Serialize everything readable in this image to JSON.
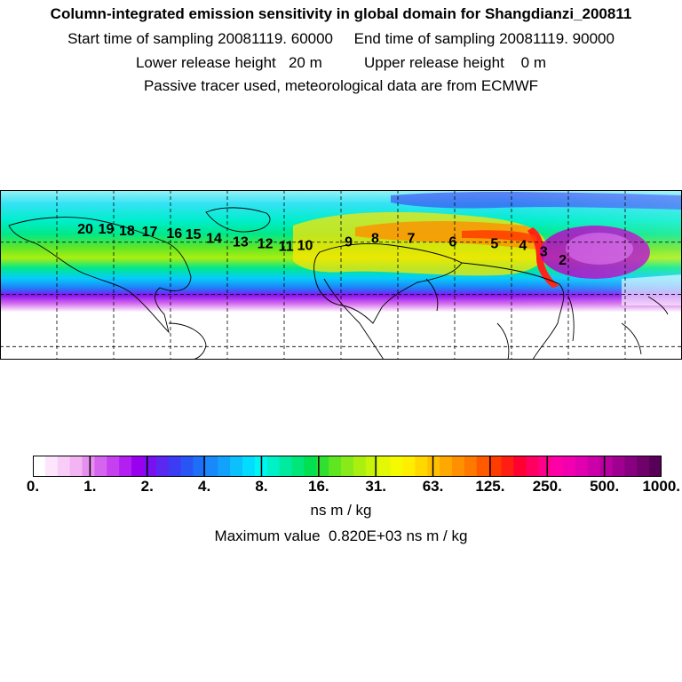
{
  "header": {
    "title": "Column-integrated emission sensitivity in global domain for Shangdianzi_200811",
    "line2": "Start time of sampling 20081119. 60000     End time of sampling 20081119. 90000",
    "line3": "Lower release height   20 m          Upper release height    0 m",
    "line4": "Passive tracer used, meteorological data are from ECMWF"
  },
  "map": {
    "grid": {
      "lon_lines": 12,
      "lat_lines": 3
    },
    "trajectory_labels": [
      {
        "label": "2",
        "lon": 117.0,
        "lat": 47.0
      },
      {
        "label": "3",
        "lon": 107.0,
        "lat": 52.0
      },
      {
        "label": "4",
        "lon": 96.0,
        "lat": 55.5
      },
      {
        "label": "5",
        "lon": 81.0,
        "lat": 56.5
      },
      {
        "label": "6",
        "lon": 59.0,
        "lat": 57.5
      },
      {
        "label": "7",
        "lon": 37.0,
        "lat": 59.5
      },
      {
        "label": "8",
        "lon": 18.0,
        "lat": 59.5
      },
      {
        "label": "9",
        "lon": 4.0,
        "lat": 57.5
      },
      {
        "label": "10",
        "lon": -19.0,
        "lat": 55.5
      },
      {
        "label": "11",
        "lon": -29.0,
        "lat": 55.0
      },
      {
        "label": "12",
        "lon": -40.0,
        "lat": 56.5
      },
      {
        "label": "13",
        "lon": -53.0,
        "lat": 57.5
      },
      {
        "label": "14",
        "lon": -67.0,
        "lat": 59.5
      },
      {
        "label": "15",
        "lon": -78.0,
        "lat": 62.0
      },
      {
        "label": "16",
        "lon": -88.0,
        "lat": 62.5
      },
      {
        "label": "17",
        "lon": -101.0,
        "lat": 63.5
      },
      {
        "label": "18",
        "lon": -113.0,
        "lat": 64.0
      },
      {
        "label": "19",
        "lon": -124.0,
        "lat": 65.0
      },
      {
        "label": "20",
        "lon": -135.0,
        "lat": 65.0
      }
    ]
  },
  "colorbar": {
    "ticks": [
      "0.",
      "1.",
      "2.",
      "4.",
      "8.",
      "16.",
      "31.",
      "63.",
      "125.",
      "250.",
      "500.",
      "1000."
    ],
    "colors": [
      "#ffffff",
      "#fde6fd",
      "#f8cdf8",
      "#f2b4f2",
      "#e68fef",
      "#d565ef",
      "#c540ef",
      "#b21ff0",
      "#9a00f0",
      "#7a10f0",
      "#5a28f0",
      "#3c3cf5",
      "#2a55f5",
      "#1f6ef8",
      "#1888fa",
      "#12a2fb",
      "#0cc0fc",
      "#04dcfe",
      "#00f5f0",
      "#00f0c8",
      "#00eaa0",
      "#00e678",
      "#00e050",
      "#30e030",
      "#60e620",
      "#88ea18",
      "#aaef10",
      "#c8f40a",
      "#e2f804",
      "#f6fa00",
      "#ffee00",
      "#ffd800",
      "#ffc000",
      "#ffa800",
      "#ff9000",
      "#ff7800",
      "#ff5a00",
      "#ff3c00",
      "#ff1e14",
      "#ff0030",
      "#ff0060",
      "#ff0088",
      "#ff00a8",
      "#f200b0",
      "#e000b0",
      "#cc00a8",
      "#b800a0",
      "#a00090",
      "#880080",
      "#70006a",
      "#580058"
    ],
    "units": "ns m / kg",
    "max_label": "Maximum value  0.820E+03 ns m / kg"
  }
}
